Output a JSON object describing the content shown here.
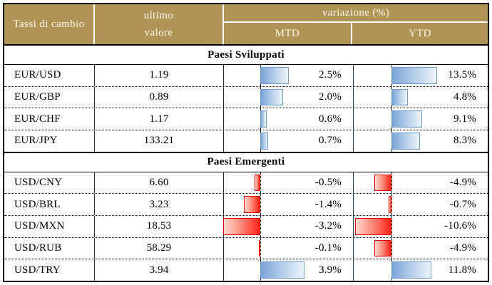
{
  "header": {
    "pair_col": "Tassi di cambio",
    "value_col_line1": "ultimo",
    "value_col_line2": "valore",
    "variation_col": "variazione (%)",
    "mtd_col": "MTD",
    "ytd_col": "YTD"
  },
  "sections": [
    {
      "title": "Paesi Sviluppati",
      "rows": [
        {
          "pair": "EUR/USD",
          "value": "1.19",
          "mtd": 2.5,
          "mtd_label": "2.5%",
          "ytd": 13.5,
          "ytd_label": "13.5%"
        },
        {
          "pair": "EUR/GBP",
          "value": "0.89",
          "mtd": 2.0,
          "mtd_label": "2.0%",
          "ytd": 4.8,
          "ytd_label": "4.8%"
        },
        {
          "pair": "EUR/CHF",
          "value": "1.17",
          "mtd": 0.6,
          "mtd_label": "0.6%",
          "ytd": 9.1,
          "ytd_label": "9.1%"
        },
        {
          "pair": "EUR/JPY",
          "value": "133.21",
          "mtd": 0.7,
          "mtd_label": "0.7%",
          "ytd": 8.3,
          "ytd_label": "8.3%"
        }
      ]
    },
    {
      "title": "Paesi Emergenti",
      "rows": [
        {
          "pair": "USD/CNY",
          "value": "6.60",
          "mtd": -0.5,
          "mtd_label": "-0.5%",
          "ytd": -4.9,
          "ytd_label": "-4.9%"
        },
        {
          "pair": "USD/BRL",
          "value": "3.23",
          "mtd": -1.4,
          "mtd_label": "-1.4%",
          "ytd": -0.7,
          "ytd_label": "-0.7%"
        },
        {
          "pair": "USD/MXN",
          "value": "18.53",
          "mtd": -3.2,
          "mtd_label": "-3.2%",
          "ytd": -10.6,
          "ytd_label": "-10.6%"
        },
        {
          "pair": "USD/RUB",
          "value": "58.29",
          "mtd": -0.1,
          "mtd_label": "-0.1%",
          "ytd": -4.9,
          "ytd_label": "-4.9%"
        },
        {
          "pair": "USD/TRY",
          "value": "3.94",
          "mtd": 3.9,
          "mtd_label": "3.9%",
          "ytd": 11.8,
          "ytd_label": "11.8%"
        }
      ]
    }
  ],
  "colors": {
    "header-bg": "#B09456",
    "header-fg": "#FCF8EC",
    "grid-dark": "#1B3245",
    "bar-pos-border": "#6C9AD0",
    "bar-neg-border": "#E80000"
  },
  "chart_data": {
    "type": "table",
    "title": "Tassi di cambio",
    "columns": [
      "Tassi di cambio",
      "ultimo valore",
      "variazione (%) MTD",
      "variazione (%) YTD"
    ],
    "groups": [
      {
        "group": "Paesi Sviluppati",
        "rows": [
          [
            "EUR/USD",
            1.19,
            2.5,
            13.5
          ],
          [
            "EUR/GBP",
            0.89,
            2.0,
            4.8
          ],
          [
            "EUR/CHF",
            1.17,
            0.6,
            9.1
          ],
          [
            "EUR/JPY",
            133.21,
            0.7,
            8.3
          ]
        ]
      },
      {
        "group": "Paesi Emergenti",
        "rows": [
          [
            "USD/CNY",
            6.6,
            -0.5,
            -4.9
          ],
          [
            "USD/BRL",
            3.23,
            -1.4,
            -0.7
          ],
          [
            "USD/MXN",
            18.53,
            -3.2,
            -10.6
          ],
          [
            "USD/RUB",
            58.29,
            -0.1,
            -4.9
          ],
          [
            "USD/TRY",
            3.94,
            3.9,
            11.8
          ]
        ]
      }
    ],
    "bar_style": {
      "positive": "blue gradient bar growing right from dashed zero axis",
      "negative": "red gradient bar growing left from dashed zero axis",
      "axis_offset_pct": 28,
      "max_bar_width_pct": 34.5
    },
    "units": "percent change, one decimal"
  }
}
